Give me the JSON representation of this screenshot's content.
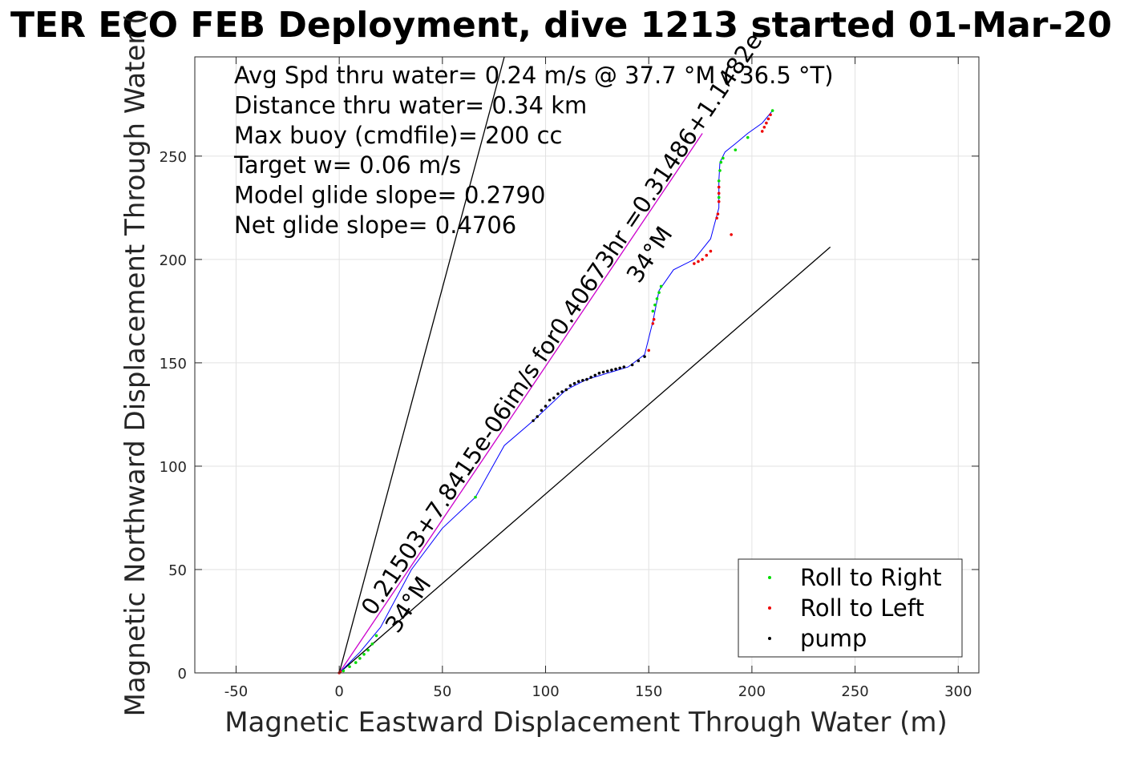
{
  "chart_data": {
    "type": "line",
    "title": "TER ECO FEB Deployment, dive 1213 started 01-Mar-20",
    "xlabel": "Magnetic Eastward Displacement Through Water (m)",
    "ylabel": "Magnetic Northward Displacement Through Water (",
    "xlim": [
      -70,
      310
    ],
    "ylim": [
      0,
      298
    ],
    "xticks": [
      -50,
      0,
      50,
      100,
      150,
      200,
      250,
      300
    ],
    "yticks": [
      0,
      50,
      100,
      150,
      200,
      250
    ],
    "grid": true,
    "annotations": [
      "Avg Spd thru water=  0.24 m/s @  37.7 °M ( 36.5 °T)",
      "Distance thru water=  0.34 km",
      "Max buoy (cmdfile)= 200 cc",
      "Target w= 0.06 m/s",
      "Model glide slope= 0.2790",
      "Net glide slope= 0.4706"
    ],
    "angled_labels": [
      "0.21503+7.8415e-06im/s for0.40673hr =0.31486+1.1482e",
      "34°M",
      "34°M"
    ],
    "reference_lines": [
      {
        "name": "steep",
        "x": [
          0,
          80
        ],
        "y": [
          0,
          298
        ],
        "color": "#000000"
      },
      {
        "name": "shallow",
        "x": [
          0,
          238
        ],
        "y": [
          0,
          206
        ],
        "color": "#000000"
      },
      {
        "name": "mean",
        "x": [
          0,
          176
        ],
        "y": [
          0,
          261
        ],
        "color": "#cc00cc"
      }
    ],
    "track": {
      "name": "track",
      "color": "#0000ff",
      "x": [
        0,
        10,
        20,
        35,
        50,
        66,
        80,
        94,
        110,
        120,
        140,
        148,
        152,
        155,
        162,
        172,
        180,
        184,
        184,
        184.5,
        187,
        192,
        198,
        205,
        210
      ],
      "y": [
        0,
        10,
        22,
        50,
        70,
        85,
        110,
        122,
        137,
        142,
        148,
        154,
        170,
        185,
        195,
        200,
        210,
        225,
        238,
        247,
        252,
        256,
        261,
        266,
        272
      ]
    },
    "series": [
      {
        "name": "Roll to Right",
        "color": "#00dd00",
        "x": [
          2,
          5,
          8,
          10,
          12,
          14,
          16,
          18,
          66,
          152,
          153,
          154,
          155,
          156,
          184,
          184,
          184.5,
          185,
          186,
          192,
          198,
          210
        ],
        "y": [
          1,
          3,
          5,
          7,
          9,
          11,
          14,
          18,
          85,
          175,
          178,
          181,
          184,
          187,
          230,
          238,
          243,
          247,
          249,
          253,
          259,
          272
        ]
      },
      {
        "name": "Roll to Left",
        "color": "#ee0000",
        "x": [
          0,
          0.5,
          150,
          152,
          152.5,
          172,
          174,
          176,
          178,
          180,
          183,
          183.5,
          184,
          184,
          184,
          190,
          205,
          206,
          207,
          208,
          209
        ],
        "y": [
          0,
          0.5,
          156,
          169,
          171,
          198,
          199,
          200,
          202,
          204,
          220,
          222,
          228,
          232,
          235,
          212,
          262,
          264,
          266,
          268,
          270
        ]
      },
      {
        "name": "pump",
        "color": "#000000",
        "x": [
          94,
          96,
          98,
          100,
          102,
          104,
          106,
          108,
          110,
          112,
          114,
          116,
          118,
          120,
          122,
          124,
          126,
          128,
          130,
          132,
          134,
          136,
          138,
          142,
          145,
          148
        ],
        "y": [
          122,
          124,
          127,
          129,
          132,
          133,
          135,
          136,
          137,
          139,
          140,
          141,
          141.5,
          142,
          143,
          144,
          145,
          145.5,
          146,
          146.5,
          147,
          147.5,
          148,
          149,
          151,
          153
        ]
      }
    ],
    "legend": {
      "position": "bottom-right",
      "entries": [
        "Roll to Right",
        "Roll to Left",
        "pump"
      ]
    }
  }
}
